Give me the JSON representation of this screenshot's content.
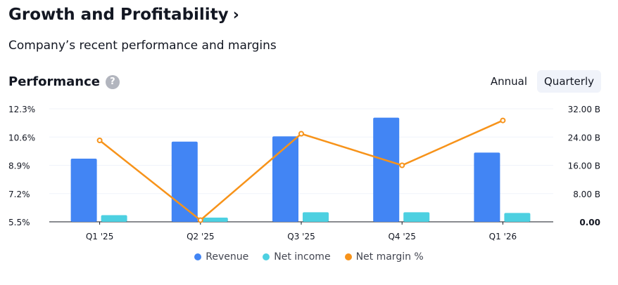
{
  "header": {
    "title": "Growth and Profitability",
    "chevron": "›",
    "subtitle": "Company’s recent performance and margins"
  },
  "performance": {
    "label": "Performance",
    "help": "?"
  },
  "period_toggle": {
    "annual": "Annual",
    "quarterly": "Quarterly",
    "selected": "Quarterly"
  },
  "colors": {
    "revenue": "#4285f4",
    "net_income": "#4dd0e1",
    "net_margin": "#f7931a"
  },
  "legend": {
    "revenue": "Revenue",
    "net_income": "Net income",
    "net_margin": "Net margin %"
  },
  "chart_data": {
    "type": "bar",
    "categories": [
      "Q1 '25",
      "Q2 '25",
      "Q3 '25",
      "Q4 '25",
      "Q1 '26"
    ],
    "left_axis": {
      "ticks": [
        "12.3%",
        "10.6%",
        "8.9%",
        "7.2%",
        "5.5%"
      ],
      "range": [
        5.5,
        12.3
      ]
    },
    "right_axis": {
      "ticks": [
        "32.00 B",
        "24.00 B",
        "16.00 B",
        "8.00 B",
        "0.00"
      ],
      "range": [
        0,
        32
      ]
    },
    "series": [
      {
        "name": "Revenue",
        "type": "bar",
        "axis": "right",
        "values": [
          17.9,
          22.7,
          24.2,
          29.5,
          19.6
        ]
      },
      {
        "name": "Net income",
        "type": "bar",
        "axis": "right",
        "values": [
          1.9,
          1.2,
          2.7,
          2.7,
          2.5
        ]
      },
      {
        "name": "Net margin %",
        "type": "line",
        "axis": "left",
        "values": [
          10.4,
          5.6,
          10.8,
          8.9,
          11.6
        ]
      }
    ],
    "grid": true,
    "legend_position": "bottom"
  }
}
